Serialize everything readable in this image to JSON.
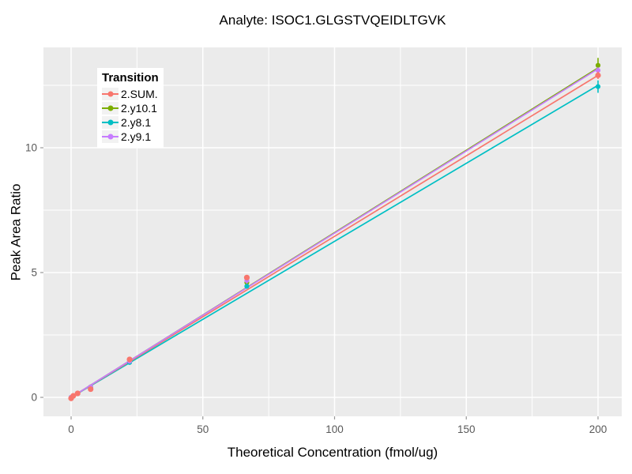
{
  "title": "Analyte: ISOC1.GLGSTVQEIDLTGVK",
  "legend": {
    "title": "Transition",
    "items": [
      {
        "label": "2.SUM.",
        "color": "#F8766D"
      },
      {
        "label": "2.y10.1",
        "color": "#7CAE00"
      },
      {
        "label": "2.y8.1",
        "color": "#00BFC4"
      },
      {
        "label": "2.y9.1",
        "color": "#C77CFF"
      }
    ]
  },
  "chart_data": {
    "type": "scatter",
    "title": "Analyte: ISOC1.GLGSTVQEIDLTGVK",
    "xlabel": "Theoretical Concentration (fmol/ug)",
    "ylabel": "Peak Area Ratio",
    "xlim": [
      -10.5,
      209.0
    ],
    "ylim": [
      -0.76,
      14.02
    ],
    "xticks": [
      0,
      50,
      100,
      150,
      200
    ],
    "yticks": [
      0,
      5,
      10
    ],
    "x_minor": [
      25,
      75,
      125,
      175
    ],
    "y_minor": [
      2.5,
      7.5,
      12.5
    ],
    "grid": true,
    "legend_position": "inside-top-left",
    "x": [
      0,
      0.82,
      2.47,
      7.41,
      22.2,
      66.7,
      200
    ],
    "series": [
      {
        "name": "2.SUM.",
        "color": "#F8766D",
        "values": [
          -0.04,
          0.06,
          0.16,
          0.33,
          1.52,
          4.8,
          12.9
        ],
        "err": [
          0,
          0,
          0,
          0,
          0,
          0.08,
          0.15
        ],
        "fit": {
          "intercept": 0,
          "slope": 0.0645
        }
      },
      {
        "name": "2.y10.1",
        "color": "#7CAE00",
        "values": [
          0.0,
          0.06,
          0.16,
          0.42,
          1.45,
          4.6,
          13.3
        ],
        "err": [
          0,
          0,
          0,
          0,
          0,
          0.05,
          0.3
        ],
        "fit": {
          "intercept": 0,
          "slope": 0.066
        }
      },
      {
        "name": "2.y8.1",
        "color": "#00BFC4",
        "values": [
          0.0,
          0.05,
          0.15,
          0.4,
          1.4,
          4.45,
          12.45
        ],
        "err": [
          0,
          0,
          0,
          0,
          0,
          0.08,
          0.25
        ],
        "fit": {
          "intercept": 0,
          "slope": 0.0625
        }
      },
      {
        "name": "2.y9.1",
        "color": "#C77CFF",
        "values": [
          0.0,
          0.06,
          0.16,
          0.42,
          1.45,
          4.68,
          13.1
        ],
        "err": [
          0,
          0,
          0,
          0,
          0,
          0.12,
          0.12
        ],
        "fit": {
          "intercept": 0,
          "slope": 0.0658
        }
      }
    ],
    "colors": {
      "panel_bg": "#EBEBEB",
      "grid": "#FFFFFF",
      "tick_mark": "#999999",
      "tick_label": "#595959",
      "text": "#000000"
    }
  }
}
